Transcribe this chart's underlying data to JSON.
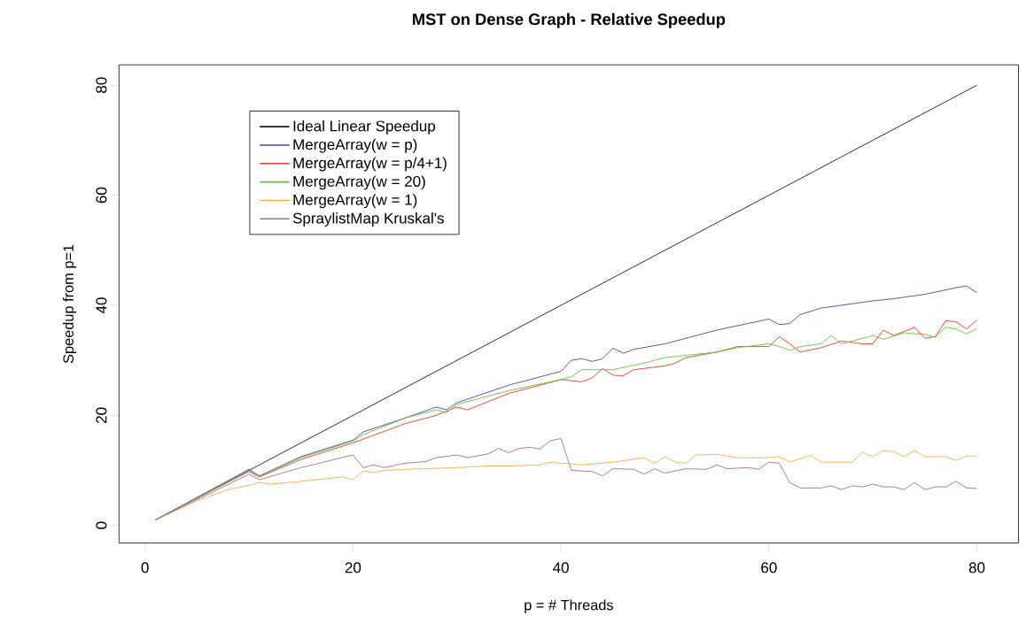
{
  "chart_data": {
    "type": "line",
    "title": "MST on Dense Graph - Relative Speedup",
    "xlabel": "p = # Threads",
    "ylabel": "Speedup from p=1",
    "xlim": [
      -2.5,
      84
    ],
    "ylim": [
      -3.2,
      83.7
    ],
    "xticks": [
      0,
      20,
      40,
      60,
      80
    ],
    "yticks": [
      0,
      20,
      40,
      60,
      80
    ],
    "grid": false,
    "legend": "top left",
    "marker": "none",
    "line_style": "solid",
    "series": [
      {
        "name": "Ideal Linear Speedup",
        "color": "#1a1a2e",
        "x": [
          1,
          80
        ],
        "values": [
          1,
          80
        ]
      },
      {
        "name": "MergeArray(w = p)",
        "color": "#4b4b9b",
        "x": [
          1,
          10,
          11,
          15,
          20,
          21,
          25,
          28,
          29,
          30,
          35,
          40,
          41,
          42,
          43,
          44,
          45,
          46,
          47,
          50,
          55,
          60,
          61,
          62,
          63,
          65,
          70,
          72,
          75,
          78,
          79,
          80
        ],
        "values": [
          1,
          10.2,
          9,
          12.5,
          15.5,
          17,
          19.5,
          21.5,
          21,
          22.3,
          25.5,
          28,
          30,
          30.3,
          29.8,
          30.3,
          32.2,
          31.3,
          32,
          33,
          35.5,
          37.5,
          36.5,
          36.7,
          38.3,
          39.5,
          40.8,
          41.2,
          42,
          43.2,
          43.5,
          42.3
        ]
      },
      {
        "name": "MergeArray(w = p/4+1)",
        "color": "#ee3b30",
        "x": [
          1,
          10,
          11,
          15,
          20,
          25,
          28,
          30,
          31,
          35,
          40,
          41,
          42,
          43,
          44,
          45,
          46,
          47,
          50,
          51,
          52,
          55,
          57,
          60,
          61,
          62,
          63,
          65,
          67,
          69,
          70,
          71,
          72,
          74,
          75,
          76,
          77,
          78,
          79,
          80
        ],
        "values": [
          1,
          9.8,
          8.8,
          12,
          15,
          18.5,
          20,
          21.5,
          21,
          24,
          26.5,
          26.3,
          26.1,
          26.8,
          28.5,
          27.3,
          27.2,
          28.3,
          29,
          29.5,
          30.5,
          31.5,
          32.5,
          32.5,
          34.3,
          33,
          31.5,
          32.3,
          33.5,
          33,
          33,
          35.5,
          34.5,
          36,
          34,
          34.3,
          37.2,
          37,
          35.7,
          37.3
        ]
      },
      {
        "name": "MergeArray(w = 20)",
        "color": "#6bbf3b",
        "x": [
          1,
          10,
          11,
          15,
          20,
          21,
          25,
          28,
          29,
          30,
          35,
          40,
          41,
          42,
          45,
          48,
          50,
          55,
          57,
          60,
          61,
          62,
          63,
          65,
          66,
          67,
          70,
          71,
          73,
          75,
          76,
          77,
          78,
          79,
          80
        ],
        "values": [
          1,
          10,
          8.9,
          12.3,
          15.3,
          16.5,
          19.5,
          21,
          20.5,
          22,
          24.5,
          26.5,
          27,
          28.3,
          28.3,
          29.5,
          30.5,
          31.5,
          32.3,
          33,
          32.5,
          31.8,
          32.5,
          33,
          34.5,
          33,
          34.5,
          33.8,
          35,
          34.7,
          34.2,
          36,
          35.7,
          34.8,
          35.8
        ]
      },
      {
        "name": "MergeArray(w = 1)",
        "color": "#f5b04a",
        "x": [
          1,
          5,
          8,
          10,
          11,
          12,
          15,
          19,
          20,
          21,
          22,
          23,
          25,
          30,
          33,
          35,
          38,
          39,
          40,
          41,
          42,
          45,
          48,
          49,
          50,
          51,
          52,
          53,
          55,
          57,
          60,
          61,
          62,
          64,
          65,
          68,
          69,
          70,
          71,
          72,
          73,
          74,
          75,
          77,
          78,
          79,
          80
        ],
        "values": [
          1,
          4.5,
          6.5,
          7.3,
          7.8,
          7.5,
          8,
          8.8,
          8.3,
          9.9,
          9.6,
          10,
          10.2,
          10.5,
          10.8,
          10.8,
          11,
          11.5,
          11.3,
          11.2,
          11,
          11.5,
          12.3,
          11.3,
          12.5,
          11.5,
          11.3,
          12.8,
          12.9,
          12.3,
          12.3,
          12.5,
          11.5,
          12.7,
          11.5,
          11.5,
          13.3,
          12.5,
          13.6,
          13.4,
          12.5,
          13.6,
          12.5,
          12.5,
          11.8,
          12.6,
          12.6
        ]
      },
      {
        "name": "SpraylistMap Kruskal's",
        "color": "#a070a0",
        "x": [
          1,
          10,
          11,
          15,
          20,
          21,
          22,
          23,
          25,
          27,
          28,
          30,
          31,
          33,
          34,
          35,
          36,
          37,
          38,
          39,
          40,
          41,
          43,
          44,
          45,
          47,
          48,
          49,
          50,
          52,
          54,
          55,
          56,
          58,
          59,
          60,
          61,
          62,
          63,
          65,
          66,
          67,
          68,
          69,
          70,
          71,
          72,
          73,
          74,
          75,
          76,
          77,
          78,
          79,
          80
        ],
        "values": [
          1,
          9.3,
          8.3,
          10.5,
          12.8,
          10.5,
          11,
          10.5,
          11.3,
          11.6,
          12.3,
          12.8,
          12.3,
          13,
          14,
          13.2,
          14,
          14.2,
          13.9,
          15.4,
          15.8,
          10,
          9.8,
          9,
          10.3,
          10.2,
          9.3,
          10.3,
          9.5,
          10.3,
          10.2,
          11,
          10.3,
          10.5,
          10.2,
          11.5,
          11.3,
          7.8,
          6.8,
          6.8,
          7.2,
          6.5,
          7.2,
          7,
          7.5,
          7,
          7,
          6.5,
          7.8,
          6.5,
          7,
          7,
          8,
          6.8,
          6.7
        ]
      }
    ]
  }
}
